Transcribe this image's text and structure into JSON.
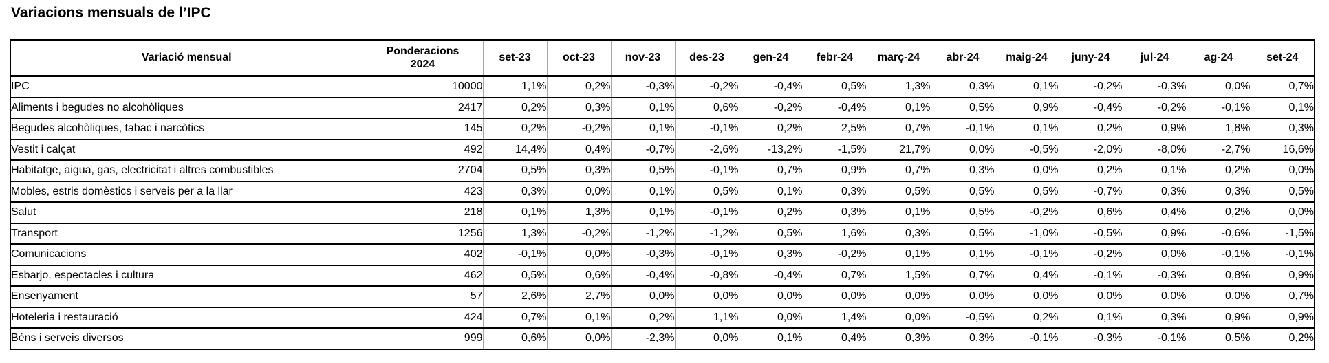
{
  "page_title": "Variacions mensuals de l’IPC",
  "colors": {
    "background": "#ffffff",
    "text": "#000000",
    "border_dark": "#000000",
    "border_light": "#a6a6a6"
  },
  "table": {
    "corner_header": "Variació mensual",
    "weight_header_line1": "Ponderacions",
    "weight_header_line2": "2024",
    "month_headers": [
      "set-23",
      "oct-23",
      "nov-23",
      "des-23",
      "gen-24",
      "febr-24",
      "març-24",
      "abr-24",
      "maig-24",
      "juny-24",
      "jul-24",
      "ag-24",
      "set-24"
    ],
    "layout": {
      "label_col_width": 512,
      "weight_col_width": 175,
      "month_col_width": 93
    },
    "rows": [
      {
        "label": "IPC",
        "ponderacio": "10000",
        "values": [
          "1,1%",
          "0,2%",
          "-0,3%",
          "-0,2%",
          "-0,4%",
          "0,5%",
          "1,3%",
          "0,3%",
          "0,1%",
          "-0,2%",
          "-0,3%",
          "0,0%",
          "0,7%"
        ]
      },
      {
        "label": "Aliments i begudes no alcohòliques",
        "ponderacio": "2417",
        "values": [
          "0,2%",
          "0,3%",
          "0,1%",
          "0,6%",
          "-0,2%",
          "-0,4%",
          "0,1%",
          "0,5%",
          "0,9%",
          "-0,4%",
          "-0,2%",
          "-0,1%",
          "0,1%"
        ]
      },
      {
        "label": "Begudes alcohòliques, tabac i narcòtics",
        "ponderacio": "145",
        "values": [
          "0,2%",
          "-0,2%",
          "0,1%",
          "-0,1%",
          "0,2%",
          "2,5%",
          "0,7%",
          "-0,1%",
          "0,1%",
          "0,2%",
          "0,9%",
          "1,8%",
          "0,3%"
        ]
      },
      {
        "label": "Vestit i calçat",
        "ponderacio": "492",
        "values": [
          "14,4%",
          "0,4%",
          "-0,7%",
          "-2,6%",
          "-13,2%",
          "-1,5%",
          "21,7%",
          "0,0%",
          "-0,5%",
          "-2,0%",
          "-8,0%",
          "-2,7%",
          "16,6%"
        ]
      },
      {
        "label": "Habitatge, aigua, gas, electricitat i altres combustibles",
        "ponderacio": "2704",
        "values": [
          "0,5%",
          "0,3%",
          "0,5%",
          "-0,1%",
          "0,7%",
          "0,9%",
          "0,7%",
          "0,3%",
          "0,0%",
          "0,2%",
          "0,1%",
          "0,2%",
          "0,0%"
        ]
      },
      {
        "label": "Mobles, estris domèstics i serveis per a la llar",
        "ponderacio": "423",
        "values": [
          "0,3%",
          "0,0%",
          "0,1%",
          "0,5%",
          "0,1%",
          "0,3%",
          "0,5%",
          "0,5%",
          "0,5%",
          "-0,7%",
          "0,3%",
          "0,3%",
          "0,5%"
        ]
      },
      {
        "label": "Salut",
        "ponderacio": "218",
        "values": [
          "0,1%",
          "1,3%",
          "0,1%",
          "-0,1%",
          "0,2%",
          "0,3%",
          "0,1%",
          "0,5%",
          "-0,2%",
          "0,6%",
          "0,4%",
          "0,2%",
          "0,0%"
        ]
      },
      {
        "label": "Transport",
        "ponderacio": "1256",
        "values": [
          "1,3%",
          "-0,2%",
          "-1,2%",
          "-1,2%",
          "0,5%",
          "1,6%",
          "0,3%",
          "0,5%",
          "-1,0%",
          "-0,5%",
          "0,9%",
          "-0,6%",
          "-1,5%"
        ]
      },
      {
        "label": "Comunicacions",
        "ponderacio": "402",
        "values": [
          "-0,1%",
          "0,0%",
          "-0,3%",
          "-0,1%",
          "0,3%",
          "-0,2%",
          "0,1%",
          "0,1%",
          "-0,1%",
          "-0,2%",
          "0,0%",
          "-0,1%",
          "-0,1%"
        ]
      },
      {
        "label": "Esbarjo, espectacles i cultura",
        "ponderacio": "462",
        "values": [
          "0,5%",
          "0,6%",
          "-0,4%",
          "-0,8%",
          "-0,4%",
          "0,7%",
          "1,5%",
          "0,7%",
          "0,4%",
          "-0,1%",
          "-0,3%",
          "0,8%",
          "0,9%"
        ]
      },
      {
        "label": "Ensenyament",
        "ponderacio": "57",
        "values": [
          "2,6%",
          "2,7%",
          "0,0%",
          "0,0%",
          "0,0%",
          "0,0%",
          "0,0%",
          "0,0%",
          "0,0%",
          "0,0%",
          "0,0%",
          "0,0%",
          "0,7%"
        ]
      },
      {
        "label": "Hoteleria i restauració",
        "ponderacio": "424",
        "values": [
          "0,7%",
          "0,1%",
          "0,2%",
          "1,1%",
          "0,0%",
          "1,4%",
          "0,0%",
          "-0,5%",
          "0,2%",
          "0,1%",
          "0,3%",
          "0,9%",
          "0,9%"
        ]
      },
      {
        "label": "Béns i serveis diversos",
        "ponderacio": "999",
        "values": [
          "0,6%",
          "0,0%",
          "-2,3%",
          "0,0%",
          "0,1%",
          "0,4%",
          "0,3%",
          "0,3%",
          "-0,1%",
          "-0,3%",
          "-0,1%",
          "0,5%",
          "0,2%"
        ]
      }
    ]
  }
}
